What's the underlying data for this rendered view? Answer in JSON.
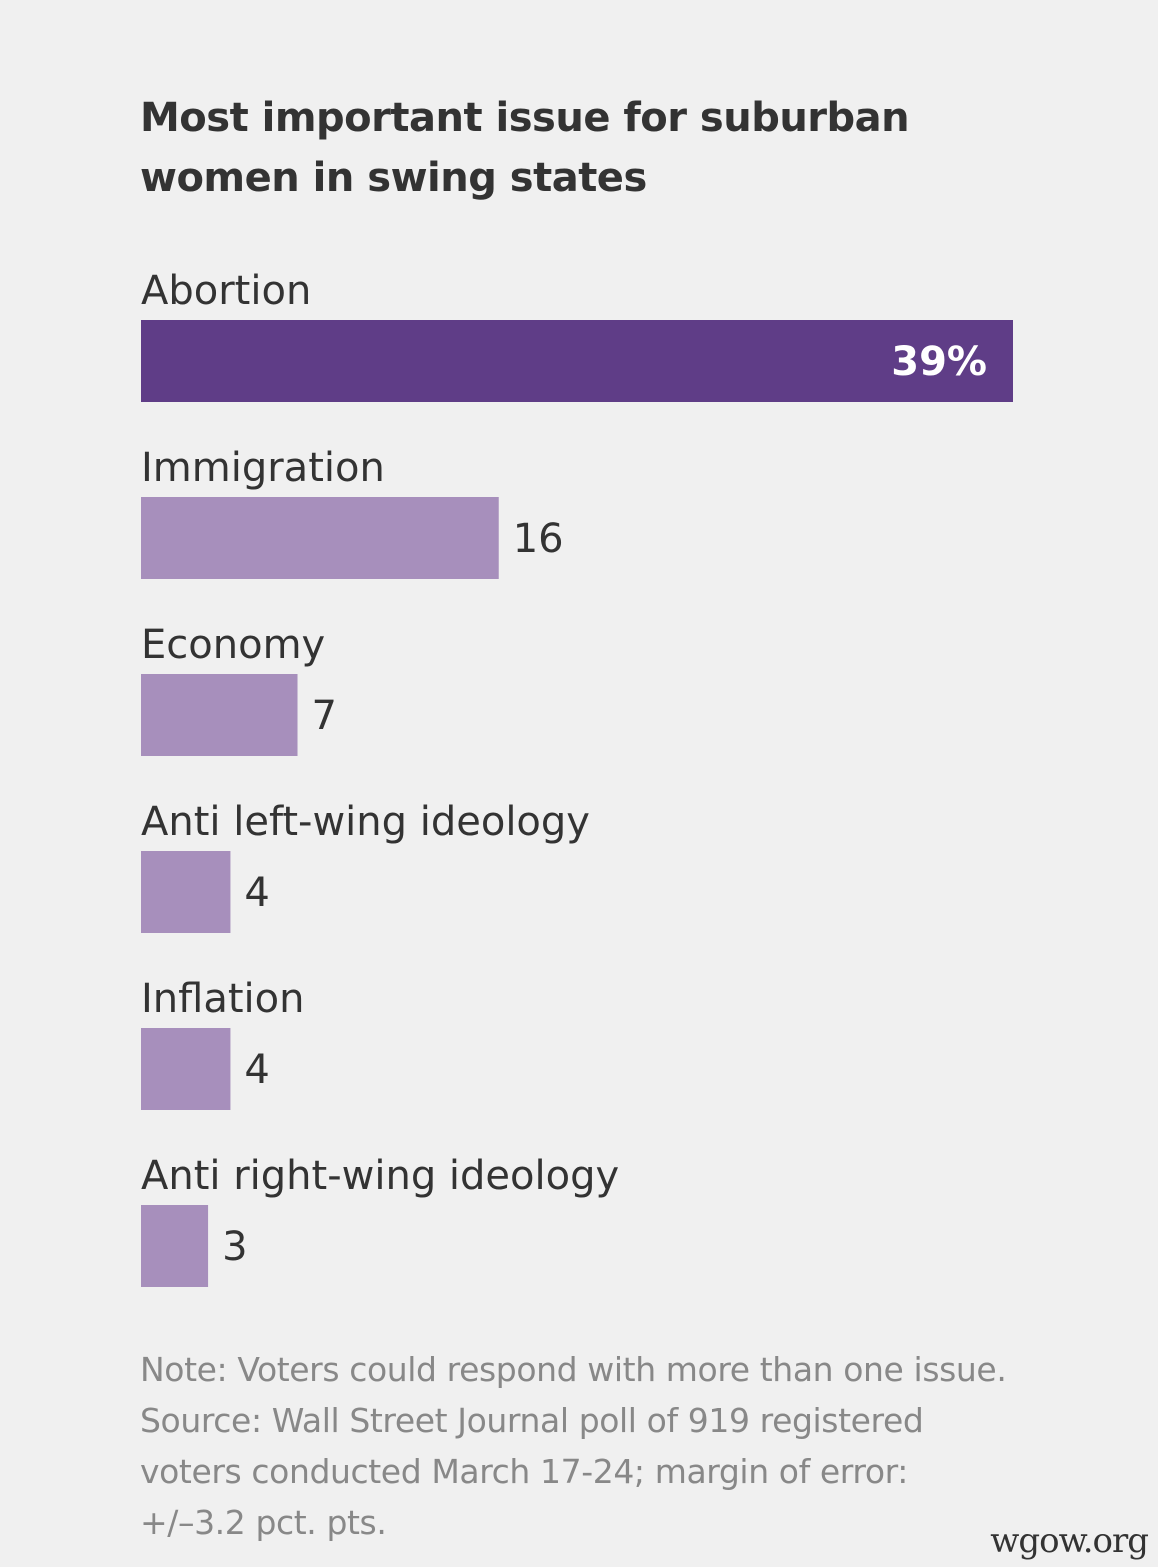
{
  "chart_data": {
    "type": "bar",
    "orientation": "horizontal",
    "title": "Most important issue for suburban women in swing states",
    "categories": [
      "Abortion",
      "Immigration",
      "Economy",
      "Anti left-wing ideology",
      "Inflation",
      "Anti right-wing ideology"
    ],
    "values": [
      39,
      16,
      7,
      4,
      4,
      3
    ],
    "value_labels": [
      "39%",
      "16",
      "7",
      "4",
      "4",
      "3"
    ],
    "unit": "%",
    "xlim": [
      0,
      39
    ],
    "grid": false,
    "legend": "none",
    "colors": {
      "highlight": "#5f3d87",
      "bar": "#a78fbc",
      "background": "#f0f0f0"
    }
  },
  "notes": {
    "line1": "Note: Voters could respond with more than one issue.",
    "line2": "Source: Wall Street Journal poll of 919 registered",
    "line3": "voters conducted March 17-24; margin of error:",
    "line4": "+/–3.2 pct. pts."
  },
  "watermark": "wgow.org"
}
